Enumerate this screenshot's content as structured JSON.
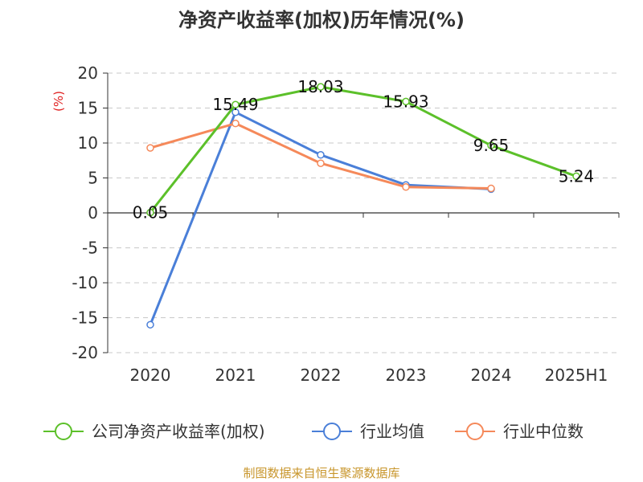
{
  "chart_data": {
    "type": "line",
    "title": "净资产收益率(加权)历年情况(%)",
    "ylabel": "(%)",
    "xlabel": "",
    "categories": [
      "2020",
      "2021",
      "2022",
      "2023",
      "2024",
      "2025H1"
    ],
    "ylim": [
      -20,
      20
    ],
    "yticks": [
      -20,
      -15,
      -10,
      -5,
      0,
      5,
      10,
      15,
      20
    ],
    "grid": true,
    "legend_position": "bottom",
    "series": [
      {
        "name": "公司净资产收益率(加权)",
        "color": "#5cc02a",
        "values": [
          0.05,
          15.49,
          18.03,
          15.93,
          9.65,
          5.24
        ],
        "labels": [
          "0.05",
          "15.49",
          "18.03",
          "15.93",
          "9.65",
          "5.24"
        ]
      },
      {
        "name": "行业均值",
        "color": "#4a7fd8",
        "values": [
          -16.0,
          14.4,
          8.3,
          4.0,
          3.4,
          null
        ]
      },
      {
        "name": "行业中位数",
        "color": "#f5895a",
        "values": [
          9.3,
          12.8,
          7.1,
          3.7,
          3.5,
          null
        ]
      }
    ],
    "source": "制图数据来自恒生聚源数据库"
  }
}
